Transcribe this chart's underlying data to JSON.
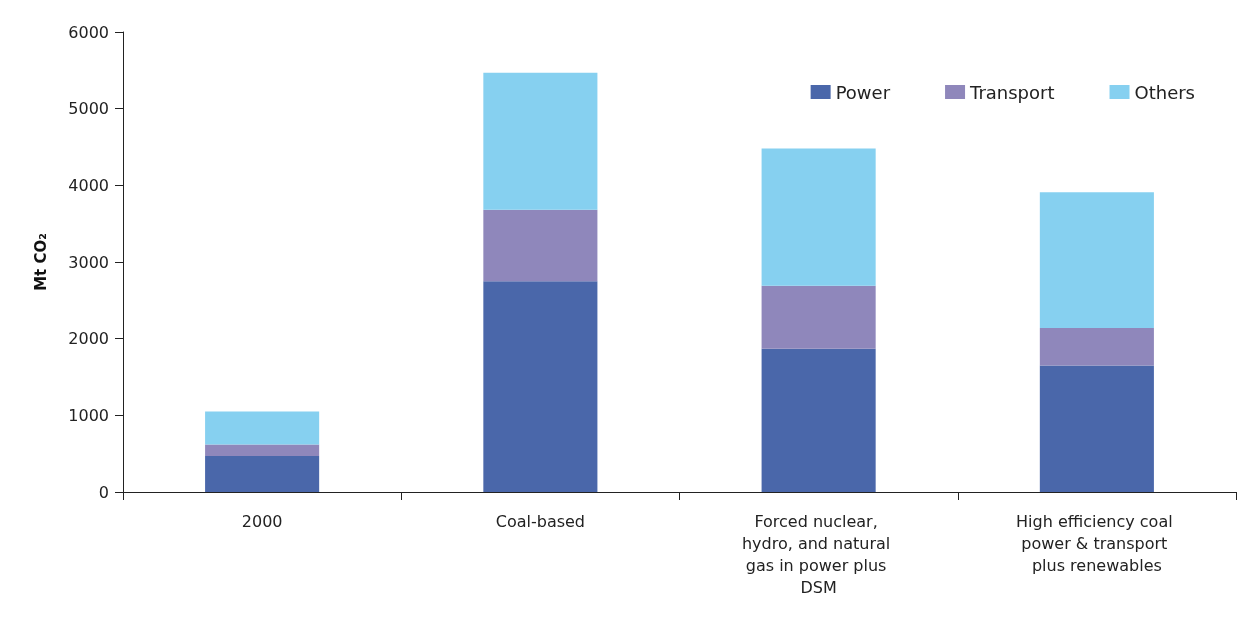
{
  "chart_data": {
    "type": "bar",
    "stacked": true,
    "ylabel": "Mt CO₂",
    "categories": [
      "2000",
      "Coal-based",
      "Forced nuclear, hydro, and natural gas in power plus DSM",
      "High efficiency coal power & transport plus renewables"
    ],
    "series": [
      {
        "name": "Power",
        "color": "#4a67aa",
        "values": [
          470,
          2750,
          1870,
          1650
        ]
      },
      {
        "name": "Transport",
        "color": "#8f87bb",
        "values": [
          150,
          930,
          820,
          490
        ]
      },
      {
        "name": "Others",
        "color": "#86d0f0",
        "values": [
          430,
          1790,
          1790,
          1770
        ]
      }
    ],
    "ylim": [
      0,
      6000
    ],
    "yticks": [
      0,
      1000,
      2000,
      3000,
      4000,
      5000,
      6000
    ],
    "grid": false,
    "legend": "top right"
  }
}
